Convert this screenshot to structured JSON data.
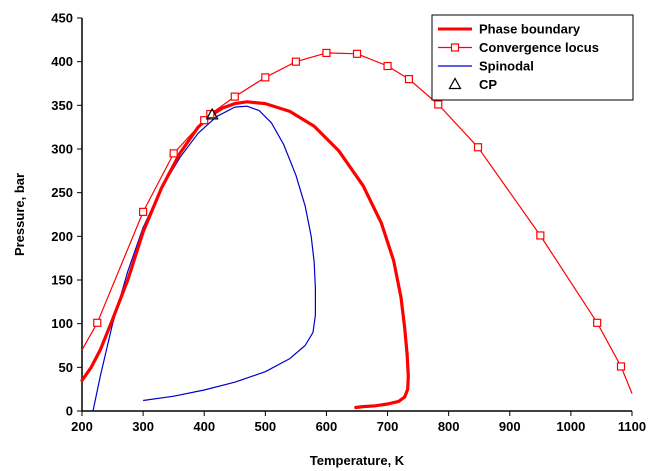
{
  "chart_data": {
    "type": "line",
    "xlabel": "Temperature, K",
    "ylabel": "Pressure, bar",
    "xlim": [
      200,
      1100
    ],
    "ylim": [
      0,
      450
    ],
    "xticks": [
      200,
      300,
      400,
      500,
      600,
      700,
      800,
      900,
      1000,
      1100
    ],
    "yticks": [
      0,
      50,
      100,
      150,
      200,
      250,
      300,
      350,
      400,
      450
    ],
    "grid": false,
    "legend_position": "top-right",
    "colors": {
      "phase_boundary": "#ff0000",
      "convergence_locus": "#ff0000",
      "spinodal": "#0000cc",
      "cp": "#000000"
    },
    "series": [
      {
        "name": "Phase boundary",
        "style": "thick-line",
        "x": [
          200,
          215,
          230,
          250,
          275,
          300,
          330,
          360,
          390,
          410,
          430,
          450,
          470,
          500,
          540,
          580,
          620,
          660,
          690,
          710,
          722,
          728,
          732,
          734,
          733,
          728,
          718,
          700,
          680,
          660,
          648
        ],
        "y": [
          35,
          50,
          70,
          105,
          150,
          205,
          255,
          295,
          325,
          338,
          347,
          352,
          354,
          352,
          343,
          326,
          298,
          258,
          215,
          172,
          130,
          95,
          65,
          40,
          25,
          16,
          11,
          8,
          6,
          5,
          4
        ]
      },
      {
        "name": "Convergence locus",
        "style": "line-square-markers",
        "x": [
          200,
          225,
          300,
          350,
          400,
          410,
          450,
          500,
          550,
          600,
          650,
          700,
          735,
          783,
          848,
          950,
          1043,
          1082,
          1100
        ],
        "y": [
          70,
          101,
          228,
          295,
          333,
          340,
          360,
          382,
          400,
          410,
          409,
          395,
          380,
          351,
          302,
          201,
          101,
          51,
          20
        ],
        "markers": [
          {
            "x": 225,
            "y": 101
          },
          {
            "x": 300,
            "y": 228
          },
          {
            "x": 350,
            "y": 295
          },
          {
            "x": 400,
            "y": 333
          },
          {
            "x": 410,
            "y": 340
          },
          {
            "x": 450,
            "y": 360
          },
          {
            "x": 500,
            "y": 382
          },
          {
            "x": 550,
            "y": 400
          },
          {
            "x": 600,
            "y": 410
          },
          {
            "x": 650,
            "y": 409
          },
          {
            "x": 700,
            "y": 395
          },
          {
            "x": 735,
            "y": 380
          },
          {
            "x": 783,
            "y": 351
          },
          {
            "x": 848,
            "y": 302
          },
          {
            "x": 950,
            "y": 201
          },
          {
            "x": 1043,
            "y": 101
          },
          {
            "x": 1082,
            "y": 51
          }
        ]
      },
      {
        "name": "Spinodal",
        "style": "thin-line",
        "x": [
          218,
          230,
          250,
          275,
          300,
          330,
          360,
          390,
          420,
          450,
          470,
          490,
          510,
          530,
          550,
          565,
          575,
          580,
          582,
          582,
          578,
          565,
          540,
          500,
          450,
          400,
          350,
          300
        ],
        "y": [
          0,
          40,
          100,
          160,
          210,
          255,
          290,
          318,
          337,
          348,
          349,
          344,
          330,
          305,
          270,
          235,
          200,
          170,
          140,
          110,
          90,
          75,
          60,
          45,
          33,
          24,
          17,
          12
        ]
      },
      {
        "name": "CP",
        "style": "triangle-marker",
        "x": [
          413
        ],
        "y": [
          339
        ]
      }
    ]
  }
}
